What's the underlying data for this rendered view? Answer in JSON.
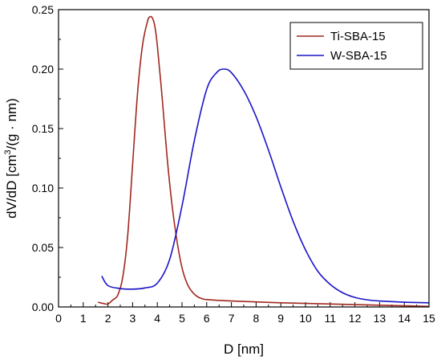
{
  "chart_data": {
    "type": "line",
    "xlabel": "D [nm]",
    "ylabel_parts": [
      "dV/dD [cm",
      "3",
      "/(g · nm)"
    ],
    "xlim": [
      0,
      15
    ],
    "ylim": [
      0,
      0.25
    ],
    "xticks": [
      "0",
      "1",
      "2",
      "3",
      "4",
      "5",
      "6",
      "7",
      "8",
      "9",
      "10",
      "11",
      "12",
      "13",
      "14",
      "15"
    ],
    "yticks": [
      "0.00",
      "0.05",
      "0.10",
      "0.15",
      "0.20",
      "0.25"
    ],
    "grid": false,
    "legend_position": "top-right",
    "series": [
      {
        "name": "Ti-SBA-15",
        "color": "#a0281e",
        "x": [
          1.6,
          1.8,
          2.0,
          2.2,
          2.4,
          2.6,
          2.8,
          3.0,
          3.2,
          3.4,
          3.6,
          3.7,
          3.8,
          3.9,
          4.0,
          4.2,
          4.4,
          4.6,
          4.8,
          5.0,
          5.2,
          5.4,
          5.6,
          5.8,
          6.0,
          6.5,
          7.0,
          8.0,
          9.0,
          10.0,
          11.0,
          12.0,
          13.0,
          14.0,
          15.0
        ],
        "y": [
          0.004,
          0.003,
          0.0025,
          0.006,
          0.01,
          0.025,
          0.06,
          0.12,
          0.18,
          0.22,
          0.24,
          0.244,
          0.243,
          0.236,
          0.22,
          0.175,
          0.125,
          0.085,
          0.055,
          0.033,
          0.02,
          0.013,
          0.009,
          0.007,
          0.0062,
          0.0055,
          0.005,
          0.0043,
          0.0035,
          0.003,
          0.0025,
          0.002,
          0.0015,
          0.001,
          0.0005
        ]
      },
      {
        "name": "W-SBA-15",
        "color": "#1a14c8",
        "x": [
          1.75,
          2.0,
          2.5,
          3.0,
          3.5,
          4.0,
          4.5,
          5.0,
          5.5,
          6.0,
          6.4,
          6.7,
          7.0,
          7.5,
          8.0,
          8.5,
          9.0,
          9.5,
          10.0,
          10.5,
          11.0,
          11.5,
          12.0,
          12.5,
          13.0,
          14.0,
          15.0
        ],
        "y": [
          0.026,
          0.018,
          0.0155,
          0.015,
          0.016,
          0.02,
          0.04,
          0.085,
          0.14,
          0.183,
          0.197,
          0.2,
          0.197,
          0.182,
          0.16,
          0.132,
          0.101,
          0.072,
          0.048,
          0.03,
          0.019,
          0.012,
          0.008,
          0.006,
          0.005,
          0.004,
          0.0035
        ]
      }
    ]
  }
}
